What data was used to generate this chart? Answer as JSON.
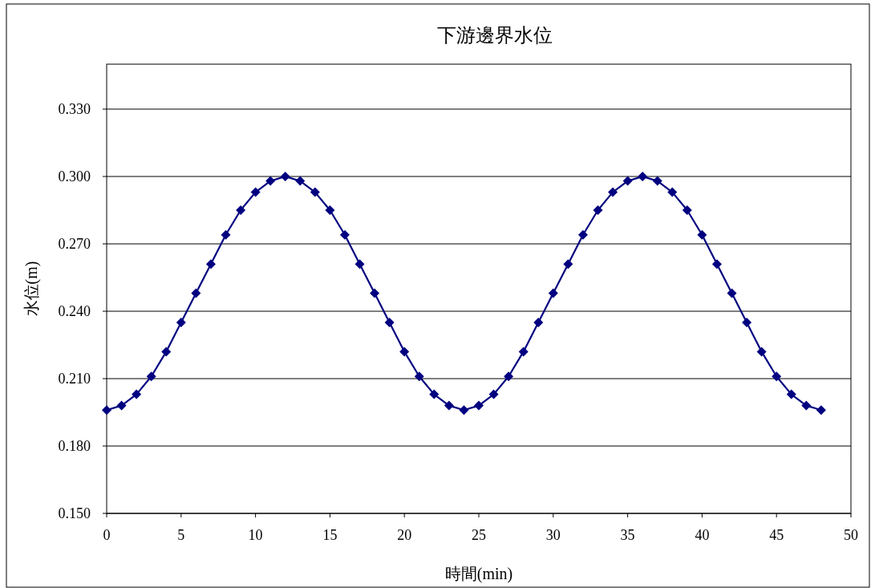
{
  "chart_data": {
    "type": "line",
    "title": "下游邊界水位",
    "xlabel": "時間(min)",
    "ylabel": "水位(m)",
    "x": [
      0,
      1,
      2,
      3,
      4,
      5,
      6,
      7,
      8,
      9,
      10,
      11,
      12,
      13,
      14,
      15,
      16,
      17,
      18,
      19,
      20,
      21,
      22,
      23,
      24,
      25,
      26,
      27,
      28,
      29,
      30,
      31,
      32,
      33,
      34,
      35,
      36,
      37,
      38,
      39,
      40,
      41,
      42,
      43,
      44,
      45,
      46,
      47,
      48
    ],
    "series": [
      {
        "color": "#000080",
        "values": [
          0.196,
          0.198,
          0.203,
          0.211,
          0.222,
          0.235,
          0.248,
          0.261,
          0.274,
          0.285,
          0.293,
          0.298,
          0.3,
          0.298,
          0.293,
          0.285,
          0.274,
          0.261,
          0.248,
          0.235,
          0.222,
          0.211,
          0.203,
          0.198,
          0.196,
          0.198,
          0.203,
          0.211,
          0.222,
          0.235,
          0.248,
          0.261,
          0.274,
          0.285,
          0.293,
          0.298,
          0.3,
          0.298,
          0.293,
          0.285,
          0.274,
          0.261,
          0.248,
          0.235,
          0.222,
          0.211,
          0.203,
          0.198,
          0.196
        ]
      }
    ],
    "xlim": [
      0,
      50
    ],
    "xticks": [
      0,
      5,
      10,
      15,
      20,
      25,
      30,
      35,
      40,
      45,
      50
    ],
    "ylim": [
      0.15,
      0.35
    ],
    "yticks": [
      {
        "value": 0.15,
        "label": "0.150"
      },
      {
        "value": 0.18,
        "label": "0.180"
      },
      {
        "value": 0.21,
        "label": "0.210"
      },
      {
        "value": 0.24,
        "label": "0.240"
      },
      {
        "value": 0.27,
        "label": "0.270"
      },
      {
        "value": 0.3,
        "label": "0.300"
      },
      {
        "value": 0.33,
        "label": "0.330"
      }
    ],
    "grid": "y",
    "marker": "diamond",
    "line_style": "solid"
  }
}
